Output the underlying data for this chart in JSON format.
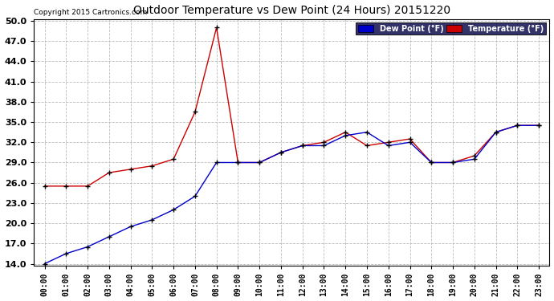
{
  "title": "Outdoor Temperature vs Dew Point (24 Hours) 20151220",
  "copyright": "Copyright 2015 Cartronics.com",
  "x_labels": [
    "00:00",
    "01:00",
    "02:00",
    "03:00",
    "04:00",
    "05:00",
    "06:00",
    "07:00",
    "08:00",
    "09:00",
    "10:00",
    "11:00",
    "12:00",
    "13:00",
    "14:00",
    "15:00",
    "16:00",
    "17:00",
    "18:00",
    "19:00",
    "20:00",
    "21:00",
    "22:00",
    "23:00"
  ],
  "temperature": [
    25.5,
    25.5,
    25.5,
    27.5,
    28.0,
    28.5,
    29.5,
    36.5,
    49.0,
    29.0,
    29.0,
    30.5,
    31.5,
    32.0,
    33.5,
    31.5,
    32.0,
    32.5,
    29.0,
    29.0,
    30.0,
    33.5,
    34.5,
    34.5
  ],
  "dew_point": [
    14.0,
    15.5,
    16.5,
    18.0,
    19.5,
    20.5,
    22.0,
    24.0,
    29.0,
    29.0,
    29.0,
    30.5,
    31.5,
    31.5,
    33.0,
    33.5,
    31.5,
    32.0,
    29.0,
    29.0,
    29.5,
    33.5,
    34.5,
    34.5
  ],
  "temp_color": "#cc0000",
  "dew_color": "#0000cc",
  "ylim_min": 14.0,
  "ylim_max": 50.0,
  "yticks": [
    14.0,
    17.0,
    20.0,
    23.0,
    26.0,
    29.0,
    32.0,
    35.0,
    38.0,
    41.0,
    44.0,
    47.0,
    50.0
  ],
  "bg_color": "#ffffff",
  "grid_color": "#bbbbbb",
  "legend_dew_bg": "#0000cc",
  "legend_temp_bg": "#cc0000"
}
